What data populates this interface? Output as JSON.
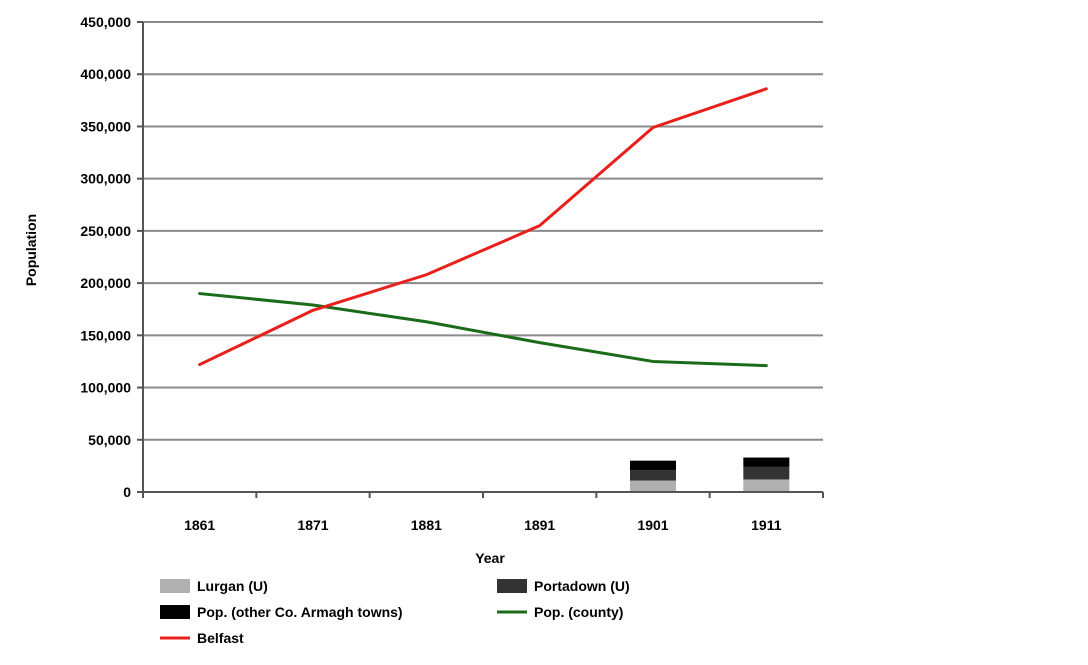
{
  "chart_data": {
    "type": "line",
    "xlabel": "Year",
    "ylabel": "Population",
    "ylim": [
      0,
      450000
    ],
    "yticks": [
      "0",
      "50,000",
      "100,000",
      "150,000",
      "200,000",
      "250,000",
      "300,000",
      "350,000",
      "400,000",
      "450,000"
    ],
    "categories": [
      "1861",
      "1871",
      "1881",
      "1891",
      "1901",
      "1911"
    ],
    "grid": true,
    "legend_position": "bottom",
    "series": [
      {
        "name": "Lurgan (U)",
        "kind": "stacked-bar",
        "color": "#b0b0b0",
        "values": [
          null,
          null,
          null,
          null,
          11000,
          12000
        ]
      },
      {
        "name": "Portadown (U)",
        "kind": "stacked-bar",
        "color": "#333333",
        "values": [
          null,
          null,
          null,
          null,
          10000,
          12000
        ]
      },
      {
        "name": "Pop. (other Co. Armagh towns)",
        "kind": "stacked-bar",
        "color": "#000000",
        "values": [
          null,
          null,
          null,
          null,
          9000,
          9000
        ]
      },
      {
        "name": "Pop. (county)",
        "kind": "line",
        "color": "#1a6b1a",
        "values": [
          190000,
          179000,
          163000,
          143000,
          125000,
          121000
        ]
      },
      {
        "name": "Belfast",
        "kind": "line",
        "color": "#e8201c",
        "values": [
          122000,
          174000,
          208000,
          255000,
          349000,
          386000
        ]
      }
    ]
  }
}
